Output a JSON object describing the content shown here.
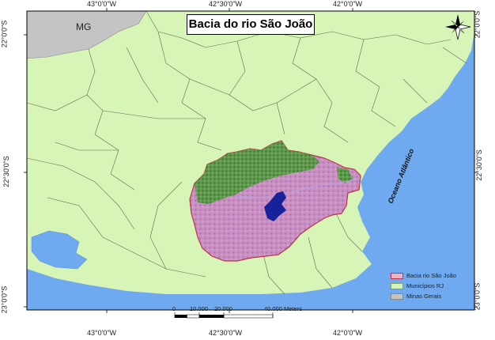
{
  "title": "Bacia do rio São João",
  "coordinates": {
    "top": [
      "43°0'0\"W",
      "42°30'0\"W",
      "42°0'0\"W"
    ],
    "bottom": [
      "43°0'0\"W",
      "42°30'0\"W",
      "42°0'0\"W"
    ],
    "left": [
      "22°0'0\"S",
      "22°30'0\"S",
      "23°0'0\"S"
    ],
    "right": [
      "22°0'0\"S",
      "22°30'0\"S",
      "23°0'0\"S"
    ]
  },
  "labels": {
    "state": "MG",
    "ocean": "Oceano Atlântico"
  },
  "legend": [
    {
      "label": "Bacia rio São João",
      "color": "#e8b4c8",
      "border": "#c0304a"
    },
    {
      "label": "Municípios RJ",
      "color": "#d8f5b8",
      "border": "#7fa060"
    },
    {
      "label": "Minas Gerais",
      "color": "#c4c4c4",
      "border": "#888888"
    }
  ],
  "scalebar": {
    "ticks": [
      "0",
      "10.000",
      "20.000",
      "40.000 Meters"
    ]
  },
  "colors": {
    "land": "#d8f5b8",
    "minas": "#c4c4c4",
    "ocean": "#6fa9ef",
    "basin_green": "#4a8a3c",
    "basin_pink": "#c98fc2",
    "reservoir": "#16219a"
  },
  "icons": {
    "north_arrow": "compass-rose-icon"
  }
}
